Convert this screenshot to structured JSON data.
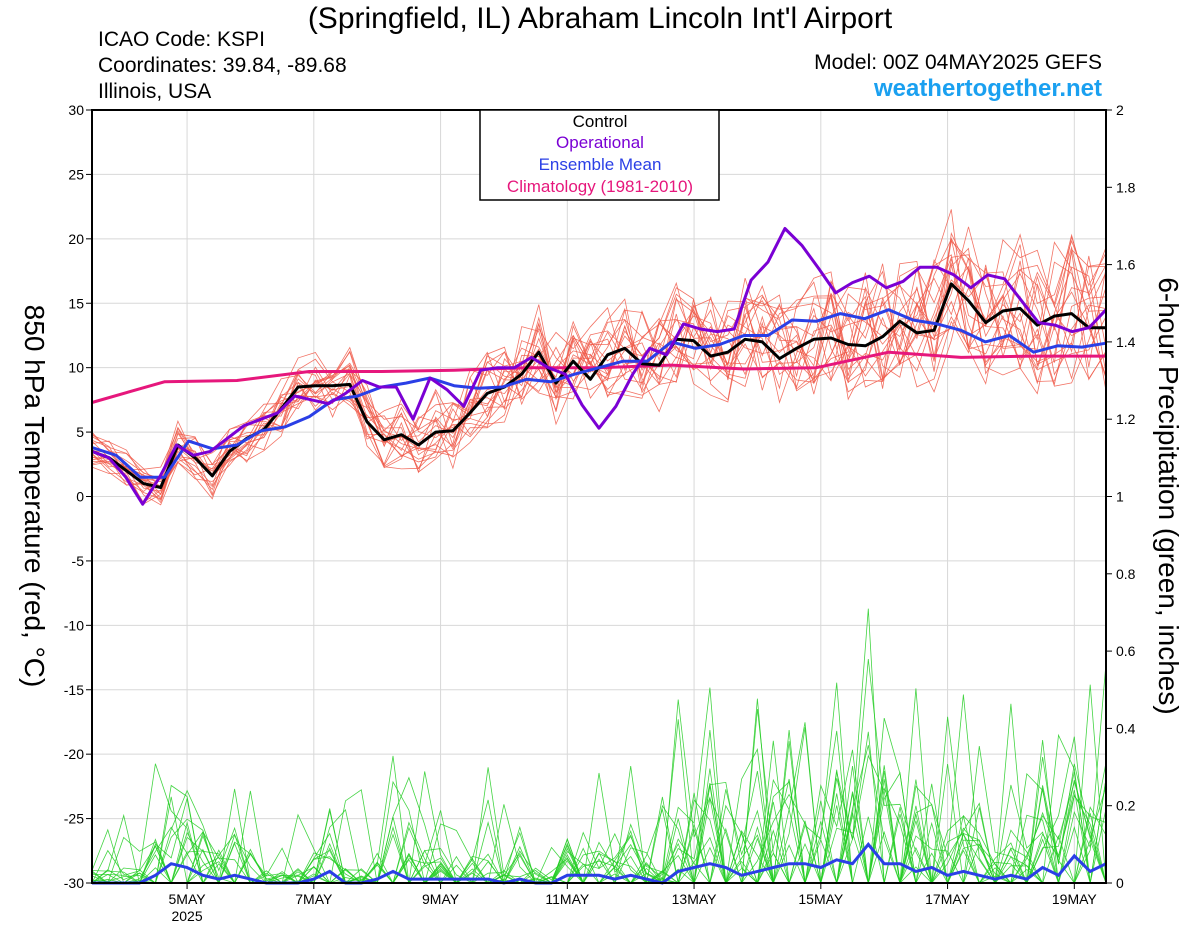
{
  "header": {
    "title": "(Springfield, IL) Abraham Lincoln Int'l Airport",
    "icao": "ICAO Code: KSPI",
    "coords": "Coordinates: 39.84, -89.68",
    "region": "Illinois, USA",
    "model": "Model: 00Z 04MAY2025 GEFS",
    "site": "weathertogether.net"
  },
  "colors": {
    "control": "#000000",
    "operational": "#7a00d4",
    "ens_mean": "#2a3fe6",
    "climatology": "#e6177c",
    "members": "#f05a4a",
    "precip_members": "#22cc22",
    "site": "#1aa0f0"
  },
  "chart_data": {
    "type": "line",
    "ylabel": "850 hPa Temperature (red, °C)",
    "y2label": "6-hour Precipitation (green, inches)",
    "ylim": [
      -30,
      30
    ],
    "y2lim": [
      0,
      2
    ],
    "yticks": [
      30,
      25,
      20,
      15,
      10,
      5,
      0,
      -5,
      -10,
      -15,
      -20,
      -25,
      -30
    ],
    "yticklabels": [
      "30",
      "25",
      "20",
      "15",
      "10",
      "5",
      "0",
      "-5",
      "-10",
      "-15",
      "-20",
      "-25",
      "-30"
    ],
    "y2ticks": [
      2,
      1.8,
      1.6,
      1.4,
      1.2,
      1,
      0.8,
      0.6,
      0.4,
      0.2,
      0
    ],
    "y2ticklabels": [
      "2",
      "1.8",
      "1.6",
      "1.4",
      "1.2",
      "1",
      "0.8",
      "0.6",
      "0.4",
      "0.2",
      "0"
    ],
    "xlim": [
      0,
      64
    ],
    "xticks": [
      {
        "x": 6,
        "label": "5MAY",
        "sub": "2025"
      },
      {
        "x": 14,
        "label": "7MAY",
        "sub": ""
      },
      {
        "x": 22,
        "label": "9MAY",
        "sub": ""
      },
      {
        "x": 30,
        "label": "11MAY",
        "sub": ""
      },
      {
        "x": 38,
        "label": "13MAY",
        "sub": ""
      },
      {
        "x": 46,
        "label": "15MAY",
        "sub": ""
      },
      {
        "x": 54,
        "label": "17MAY",
        "sub": ""
      },
      {
        "x": 62,
        "label": "19MAY",
        "sub": ""
      }
    ],
    "legend": {
      "placement": "top-center",
      "entries": [
        "Control",
        "Operational",
        "Ensemble Mean",
        "Climatology (1981-2010)"
      ]
    },
    "series": [
      {
        "name": "Control",
        "color": "#000000",
        "values": [
          3.5,
          3,
          2,
          1,
          0.7,
          4,
          3,
          1.6,
          3.5,
          4.5,
          5.2,
          6.8,
          8.5,
          8.6,
          8.6,
          8.7,
          5.8,
          4.4,
          4.8,
          4,
          5,
          5.1,
          6.5,
          8,
          8.5,
          9.5,
          11.2,
          8.8,
          10.5,
          9.1,
          11,
          11.5,
          10.3,
          10.2,
          12.2,
          12.1,
          10.9,
          11.2,
          12.2,
          12,
          10.7,
          11.5,
          12.2,
          12.3,
          11.8,
          11.7,
          12.4,
          13.6,
          12.7,
          12.9,
          16.5,
          15.2,
          13.5,
          14.4,
          14.6,
          13.3,
          14,
          14.2,
          13.1,
          13.1
        ]
      },
      {
        "name": "Operational",
        "color": "#7a00d4",
        "values": [
          3.5,
          3,
          1.5,
          -0.6,
          1.5,
          4,
          3.2,
          3.5,
          4.5,
          5.5,
          6,
          6.5,
          7.8,
          7.5,
          7.2,
          8,
          9,
          8.5,
          8.5,
          6,
          9.2,
          8.3,
          7,
          9.8,
          10,
          10,
          10.8,
          10,
          9.5,
          7.1,
          5.3,
          7,
          9.5,
          11.5,
          11,
          13.4,
          13,
          12.8,
          13,
          16.8,
          18.2,
          20.8,
          19.5,
          17.7,
          15.8,
          16.6,
          17.1,
          16.2,
          16.7,
          17.8,
          17.8,
          17.2,
          16.2,
          17.2,
          16.9,
          15.2,
          13.5,
          13.3,
          12.8,
          13.1,
          14.5
        ]
      },
      {
        "name": "Ensemble Mean",
        "color": "#2a3fe6",
        "values": [
          3.8,
          3.2,
          1.5,
          1.5,
          4.3,
          3.7,
          4,
          5.1,
          5.4,
          6.2,
          7.5,
          7.8,
          8.5,
          8.8,
          9.2,
          8.6,
          8.4,
          8.5,
          9.1,
          8.9,
          9.5,
          10,
          10.5,
          10.5,
          12,
          11.5,
          11.8,
          12.5,
          12.5,
          13.7,
          13.6,
          14.2,
          13.8,
          14.5,
          13.7,
          13.4,
          12.9,
          12,
          12.5,
          11.2,
          11.7,
          11.6,
          11.9
        ]
      },
      {
        "name": "Climatology (1981-2010)",
        "color": "#e6177c",
        "values": [
          7.3,
          8.9,
          9,
          9.7,
          9.7,
          9.8,
          10,
          10,
          10.2,
          9.9,
          10,
          11.2,
          10.8,
          10.9,
          10.9
        ]
      }
    ],
    "precip_series": {
      "name": "Ensemble Mean",
      "color": "#2a3fe6",
      "values": [
        0,
        0,
        0,
        0,
        0.02,
        0.05,
        0.04,
        0.02,
        0.01,
        0.02,
        0.01,
        0,
        0,
        0,
        0.01,
        0.03,
        0,
        0,
        0.01,
        0.03,
        0.01,
        0.01,
        0.01,
        0.01,
        0.01,
        0.01,
        0,
        0.01,
        0,
        0,
        0.02,
        0.02,
        0.02,
        0.01,
        0.02,
        0.01,
        0,
        0.03,
        0.04,
        0.05,
        0.04,
        0.02,
        0.03,
        0.04,
        0.05,
        0.05,
        0.04,
        0.06,
        0.05,
        0.1,
        0.05,
        0.05,
        0.03,
        0.04,
        0.02,
        0.03,
        0.02,
        0.01,
        0.02,
        0.01,
        0.04,
        0.02,
        0.07,
        0.03,
        0.05
      ]
    }
  }
}
